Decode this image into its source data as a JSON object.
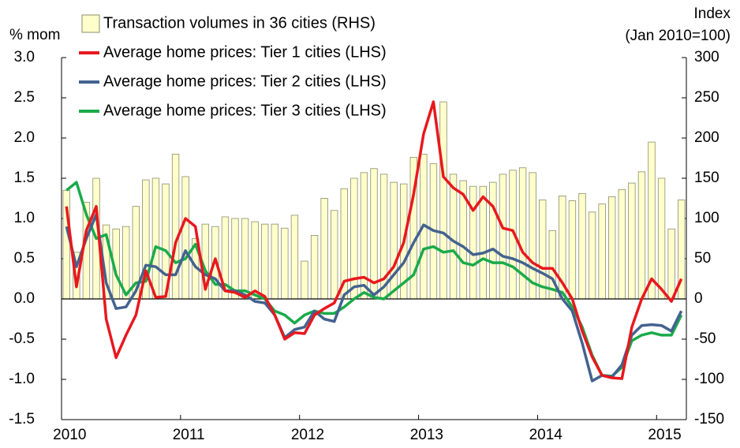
{
  "chart_data": {
    "type": "combo",
    "ylabel": "% mom",
    "y2label": [
      "Index",
      "(Jan 2010=100)"
    ],
    "categories": [
      "2010",
      null,
      null,
      null,
      null,
      null,
      null,
      null,
      null,
      null,
      null,
      null,
      "2011",
      null,
      null,
      null,
      null,
      null,
      null,
      null,
      null,
      null,
      null,
      null,
      "2012",
      null,
      null,
      null,
      null,
      null,
      null,
      null,
      null,
      null,
      null,
      null,
      "2013",
      null,
      null,
      null,
      null,
      null,
      null,
      null,
      null,
      null,
      null,
      null,
      "2014",
      null,
      null,
      null,
      null,
      null,
      null,
      null,
      null,
      null,
      null,
      null,
      "2015",
      null,
      null
    ],
    "series": [
      {
        "name": "Transaction volumes in 36 cities (RHS)",
        "type": "bar",
        "axis": "y2",
        "color": "#ffffcc",
        "values": [
          135,
          58,
          120,
          150,
          92,
          87,
          90,
          115,
          148,
          150,
          143,
          180,
          152,
          75,
          93,
          90,
          102,
          100,
          100,
          96,
          93,
          93,
          88,
          104,
          47,
          79,
          125,
          110,
          137,
          150,
          157,
          162,
          155,
          145,
          143,
          176,
          180,
          168,
          245,
          155,
          147,
          140,
          140,
          145,
          155,
          160,
          163,
          157,
          123,
          85,
          128,
          122,
          131,
          108,
          118,
          127,
          136,
          144,
          158,
          195,
          150,
          87,
          123
        ]
      },
      {
        "name": "Average home prices: Tier 1 cities (LHS)",
        "type": "line",
        "color": "#e8181e",
        "values": [
          1.15,
          0.15,
          0.85,
          1.15,
          -0.25,
          -0.73,
          -0.45,
          -0.2,
          0.35,
          0.02,
          0.03,
          0.7,
          1.0,
          0.9,
          0.12,
          0.5,
          0.1,
          0.08,
          0.02,
          0.1,
          0.03,
          -0.2,
          -0.5,
          -0.42,
          -0.43,
          -0.2,
          -0.12,
          -0.05,
          0.22,
          0.25,
          0.27,
          0.2,
          0.25,
          0.4,
          0.7,
          1.3,
          2.05,
          2.45,
          1.52,
          1.38,
          1.3,
          1.1,
          1.27,
          1.15,
          0.88,
          0.85,
          0.58,
          0.45,
          0.38,
          0.38,
          0.2,
          0.0,
          -0.4,
          -0.72,
          -0.95,
          -0.98,
          -0.99,
          -0.35,
          0.0,
          0.25,
          0.12,
          -0.03,
          0.25
        ]
      },
      {
        "name": "Average home prices: Tier 2 cities (LHS)",
        "type": "line",
        "color": "#43628f",
        "values": [
          0.9,
          0.4,
          0.75,
          1.05,
          0.2,
          -0.12,
          -0.1,
          0.1,
          0.42,
          0.4,
          0.3,
          0.3,
          0.6,
          0.4,
          0.3,
          0.25,
          0.1,
          0.1,
          0.05,
          -0.03,
          -0.05,
          -0.2,
          -0.48,
          -0.38,
          -0.35,
          -0.15,
          -0.25,
          -0.28,
          0.05,
          0.15,
          0.17,
          0.05,
          0.15,
          0.3,
          0.45,
          0.7,
          0.92,
          0.85,
          0.82,
          0.72,
          0.65,
          0.55,
          0.57,
          0.62,
          0.53,
          0.5,
          0.45,
          0.38,
          0.32,
          0.25,
          0.0,
          -0.15,
          -0.55,
          -1.02,
          -0.95,
          -0.97,
          -0.82,
          -0.45,
          -0.33,
          -0.32,
          -0.33,
          -0.4,
          -0.15
        ]
      },
      {
        "name": "Average home prices: Tier 3 cities (LHS)",
        "type": "line",
        "color": "#1aaa4a",
        "values": [
          1.35,
          1.45,
          1.05,
          0.75,
          0.8,
          0.3,
          0.05,
          0.2,
          0.22,
          0.65,
          0.6,
          0.45,
          0.5,
          0.68,
          0.35,
          0.18,
          0.18,
          0.1,
          0.1,
          0.05,
          0.0,
          -0.15,
          -0.2,
          -0.3,
          -0.2,
          -0.15,
          -0.18,
          -0.18,
          -0.1,
          0.0,
          0.08,
          0.02,
          0.0,
          0.1,
          0.2,
          0.3,
          0.62,
          0.65,
          0.58,
          0.6,
          0.45,
          0.42,
          0.5,
          0.45,
          0.45,
          0.4,
          0.3,
          0.2,
          0.15,
          0.12,
          0.08,
          -0.1,
          -0.35,
          -0.7,
          -0.95,
          -0.96,
          -0.85,
          -0.52,
          -0.45,
          -0.42,
          -0.45,
          -0.45,
          -0.2
        ]
      }
    ],
    "ylim": [
      -1.5,
      3.0
    ],
    "yticks": [
      {
        "value": -1.5,
        "label": "-1.5"
      },
      {
        "value": -1,
        "label": "-1.0"
      },
      -0.5,
      {
        "value": 0,
        "label": "0.0"
      },
      0.5,
      {
        "value": 1,
        "label": "1.0"
      },
      1.5,
      {
        "value": 2,
        "label": "2.0"
      },
      2.5,
      {
        "value": 3,
        "label": "3.0"
      }
    ],
    "y2lim": [
      -150,
      300
    ],
    "y2ticks": [
      -150,
      -100,
      -50,
      0,
      50,
      100,
      150,
      200,
      250,
      300
    ],
    "grid": false,
    "legend": "top-left"
  }
}
